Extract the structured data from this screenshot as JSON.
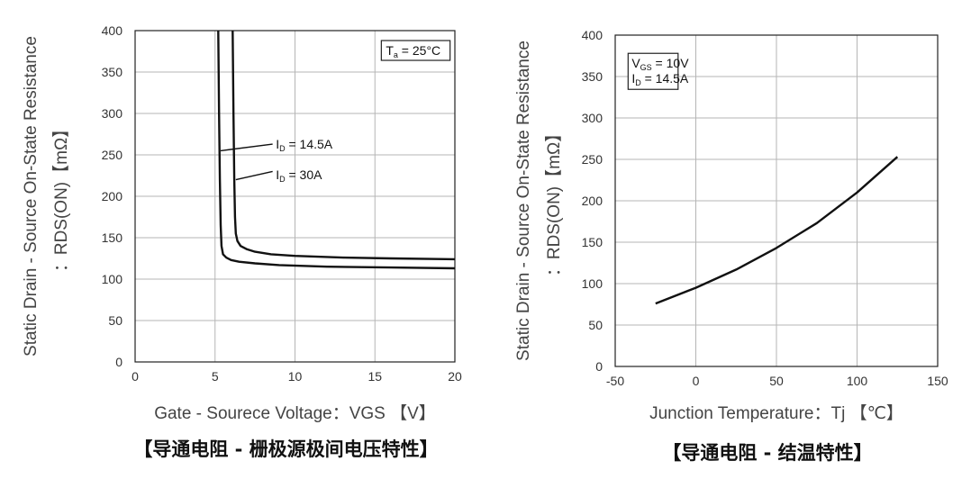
{
  "chart_data": [
    {
      "type": "line",
      "xlabel": "Gate - Sourece Voltage：VGS 【V】",
      "ylabel_line1": "Static Drain - Source On-State Resistance",
      "ylabel_line2": "：RDS(ON)【mΩ】",
      "caption": "【导通电阻 - 栅极源极间电压特性】",
      "xlim": [
        0,
        20
      ],
      "ylim": [
        0,
        400
      ],
      "xticks": [
        0,
        5,
        10,
        15,
        20
      ],
      "yticks": [
        0,
        50,
        100,
        150,
        200,
        250,
        300,
        350,
        400
      ],
      "grid": true,
      "condition_box": {
        "main": "T",
        "sub": "a",
        "rest": " = 25°C"
      },
      "series": [
        {
          "name": "I₀ = 14.5A",
          "label_main": "I",
          "label_sub": "D",
          "label_rest": " = 14.5A",
          "x": [
            5.2,
            5.25,
            5.3,
            5.35,
            5.4,
            5.5,
            5.7,
            6.0,
            6.5,
            7.5,
            9.0,
            12.0,
            16.0,
            20.0
          ],
          "y": [
            400,
            300,
            220,
            165,
            140,
            130,
            126,
            123,
            121,
            119,
            117,
            115,
            114,
            113
          ]
        },
        {
          "name": "I₀ = 30A",
          "label_main": "I",
          "label_sub": "D",
          "label_rest": " = 30A",
          "x": [
            6.1,
            6.15,
            6.2,
            6.25,
            6.3,
            6.4,
            6.6,
            7.0,
            7.5,
            8.5,
            10.0,
            13.0,
            16.0,
            20.0
          ],
          "y": [
            400,
            300,
            220,
            175,
            155,
            146,
            140,
            136,
            133,
            130,
            128,
            126,
            125,
            124
          ]
        }
      ]
    },
    {
      "type": "line",
      "xlabel": "Junction Temperature：Tj 【℃】",
      "ylabel_line1": "Static Drain - Source On-State Resistance",
      "ylabel_line2": "：RDS(ON)【mΩ】",
      "caption": "【导通电阻 - 结温特性】",
      "xlim": [
        -50,
        150
      ],
      "ylim": [
        0,
        400
      ],
      "xticks": [
        -50,
        0,
        50,
        100,
        150
      ],
      "yticks": [
        0,
        50,
        100,
        150,
        200,
        250,
        300,
        350,
        400
      ],
      "grid": true,
      "condition_lines": [
        {
          "main": "V",
          "sub": "GS",
          "rest": " = 10V"
        },
        {
          "main": "I",
          "sub": "D",
          "rest": " = 14.5A"
        }
      ],
      "series": [
        {
          "x": [
            -25,
            0,
            25,
            50,
            75,
            100,
            125
          ],
          "y": [
            76,
            95,
            117,
            143,
            173,
            210,
            253
          ]
        }
      ]
    }
  ]
}
